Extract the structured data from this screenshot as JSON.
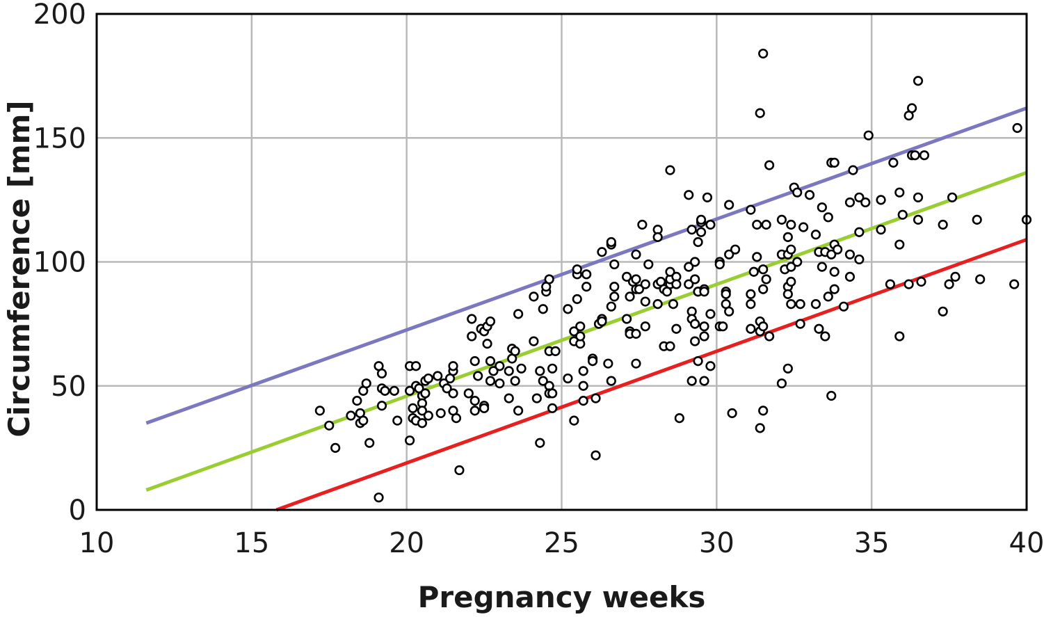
{
  "chart_data": {
    "type": "scatter",
    "title": "",
    "xlabel": "Pregnancy weeks",
    "ylabel": "Circumference [mm]",
    "xlim": [
      10,
      40
    ],
    "ylim": [
      0,
      200
    ],
    "xticks": [
      10,
      15,
      20,
      25,
      30,
      35,
      40
    ],
    "yticks": [
      0,
      50,
      100,
      150,
      200
    ],
    "grid": true,
    "legend": "none",
    "lines": [
      {
        "color": "#7b78c0",
        "x": [
          11.6,
          40
        ],
        "y": [
          35,
          162
        ]
      },
      {
        "color": "#9acd32",
        "x": [
          11.6,
          40
        ],
        "y": [
          8,
          136
        ]
      },
      {
        "color": "#e62020",
        "x": [
          15.8,
          40
        ],
        "y": [
          0,
          109
        ]
      }
    ],
    "series": [
      {
        "marker": "open-circle",
        "points": [
          [
            17.2,
            40
          ],
          [
            17.5,
            34
          ],
          [
            17.7,
            25
          ],
          [
            18.2,
            38
          ],
          [
            18.4,
            44
          ],
          [
            18.5,
            39
          ],
          [
            18.5,
            35
          ],
          [
            18.6,
            36
          ],
          [
            18.6,
            48
          ],
          [
            18.7,
            51
          ],
          [
            18.8,
            27
          ],
          [
            19.1,
            5
          ],
          [
            19.1,
            58
          ],
          [
            19.2,
            55
          ],
          [
            19.2,
            49
          ],
          [
            19.2,
            42
          ],
          [
            19.3,
            48
          ],
          [
            19.6,
            48
          ],
          [
            19.7,
            36
          ],
          [
            20.1,
            58
          ],
          [
            20.1,
            48
          ],
          [
            20.1,
            28
          ],
          [
            20.2,
            41
          ],
          [
            20.2,
            37
          ],
          [
            20.3,
            58
          ],
          [
            20.3,
            50
          ],
          [
            20.3,
            36
          ],
          [
            20.4,
            49
          ],
          [
            20.5,
            46
          ],
          [
            20.5,
            43
          ],
          [
            20.5,
            40
          ],
          [
            20.5,
            35
          ],
          [
            20.6,
            52
          ],
          [
            20.6,
            47
          ],
          [
            20.7,
            38
          ],
          [
            20.7,
            53
          ],
          [
            21.0,
            54
          ],
          [
            21.1,
            39
          ],
          [
            21.2,
            51
          ],
          [
            21.3,
            49
          ],
          [
            21.4,
            53
          ],
          [
            21.5,
            56
          ],
          [
            21.5,
            58
          ],
          [
            21.5,
            47
          ],
          [
            21.5,
            40
          ],
          [
            21.6,
            37
          ],
          [
            21.7,
            16
          ],
          [
            22.0,
            47
          ],
          [
            22.1,
            70
          ],
          [
            22.1,
            77
          ],
          [
            22.2,
            44
          ],
          [
            22.2,
            40
          ],
          [
            22.2,
            60
          ],
          [
            22.3,
            54
          ],
          [
            22.4,
            73
          ],
          [
            22.5,
            72
          ],
          [
            22.5,
            42
          ],
          [
            22.5,
            41
          ],
          [
            22.6,
            67
          ],
          [
            22.6,
            74
          ],
          [
            22.7,
            76
          ],
          [
            22.7,
            60
          ],
          [
            22.7,
            52
          ],
          [
            22.8,
            56
          ],
          [
            23.0,
            58
          ],
          [
            23.0,
            51
          ],
          [
            23.3,
            56
          ],
          [
            23.3,
            45
          ],
          [
            23.4,
            65
          ],
          [
            23.4,
            61
          ],
          [
            23.5,
            64
          ],
          [
            23.5,
            52
          ],
          [
            23.6,
            79
          ],
          [
            23.6,
            40
          ],
          [
            23.7,
            57
          ],
          [
            24.1,
            68
          ],
          [
            24.1,
            86
          ],
          [
            24.2,
            45
          ],
          [
            24.3,
            27
          ],
          [
            24.3,
            56
          ],
          [
            24.4,
            52
          ],
          [
            24.4,
            81
          ],
          [
            24.5,
            88
          ],
          [
            24.5,
            90
          ],
          [
            24.6,
            93
          ],
          [
            24.6,
            64
          ],
          [
            24.6,
            50
          ],
          [
            24.6,
            47
          ],
          [
            24.7,
            57
          ],
          [
            24.7,
            47
          ],
          [
            24.7,
            41
          ],
          [
            24.8,
            64
          ],
          [
            25.2,
            53
          ],
          [
            25.2,
            81
          ],
          [
            25.4,
            68
          ],
          [
            25.4,
            72
          ],
          [
            25.4,
            36
          ],
          [
            25.5,
            95
          ],
          [
            25.5,
            97
          ],
          [
            25.5,
            85
          ],
          [
            25.6,
            74
          ],
          [
            25.6,
            67
          ],
          [
            25.6,
            70
          ],
          [
            25.7,
            44
          ],
          [
            25.7,
            56
          ],
          [
            25.7,
            50
          ],
          [
            25.8,
            90
          ],
          [
            25.8,
            95
          ],
          [
            26.0,
            61
          ],
          [
            26.0,
            60
          ],
          [
            26.1,
            22
          ],
          [
            26.1,
            45
          ],
          [
            26.2,
            75
          ],
          [
            26.3,
            77
          ],
          [
            26.3,
            76
          ],
          [
            26.3,
            104
          ],
          [
            26.5,
            59
          ],
          [
            26.6,
            107
          ],
          [
            26.6,
            108
          ],
          [
            26.6,
            82
          ],
          [
            26.6,
            52
          ],
          [
            26.7,
            99
          ],
          [
            26.7,
            90
          ],
          [
            26.7,
            86
          ],
          [
            27.1,
            77
          ],
          [
            27.1,
            94
          ],
          [
            27.2,
            86
          ],
          [
            27.2,
            72
          ],
          [
            27.2,
            71
          ],
          [
            27.3,
            92
          ],
          [
            27.4,
            93
          ],
          [
            27.4,
            89
          ],
          [
            27.4,
            59
          ],
          [
            27.4,
            71
          ],
          [
            27.4,
            103
          ],
          [
            27.5,
            89
          ],
          [
            27.6,
            115
          ],
          [
            27.7,
            91
          ],
          [
            27.7,
            74
          ],
          [
            27.7,
            84
          ],
          [
            27.8,
            99
          ],
          [
            28.1,
            113
          ],
          [
            28.1,
            110
          ],
          [
            28.1,
            83
          ],
          [
            28.1,
            91
          ],
          [
            28.2,
            92
          ],
          [
            28.3,
            89
          ],
          [
            28.3,
            66
          ],
          [
            28.4,
            88
          ],
          [
            28.5,
            91
          ],
          [
            28.5,
            93
          ],
          [
            28.5,
            96
          ],
          [
            28.5,
            66
          ],
          [
            28.5,
            137
          ],
          [
            28.6,
            83
          ],
          [
            28.7,
            73
          ],
          [
            28.7,
            94
          ],
          [
            28.7,
            91
          ],
          [
            28.8,
            37
          ],
          [
            29.1,
            127
          ],
          [
            29.1,
            98
          ],
          [
            29.1,
            91
          ],
          [
            29.2,
            80
          ],
          [
            29.2,
            52
          ],
          [
            29.2,
            77
          ],
          [
            29.2,
            113
          ],
          [
            29.3,
            100
          ],
          [
            29.3,
            93
          ],
          [
            29.3,
            68
          ],
          [
            29.3,
            75
          ],
          [
            29.4,
            108
          ],
          [
            29.4,
            88
          ],
          [
            29.4,
            88
          ],
          [
            29.4,
            60
          ],
          [
            29.5,
            116
          ],
          [
            29.5,
            117
          ],
          [
            29.5,
            112
          ],
          [
            29.6,
            89
          ],
          [
            29.6,
            70
          ],
          [
            29.6,
            52
          ],
          [
            29.6,
            88
          ],
          [
            29.6,
            74
          ],
          [
            29.7,
            126
          ],
          [
            29.8,
            115
          ],
          [
            29.8,
            79
          ],
          [
            29.8,
            58
          ],
          [
            30.1,
            74
          ],
          [
            30.1,
            100
          ],
          [
            30.1,
            99
          ],
          [
            30.2,
            74
          ],
          [
            30.3,
            88
          ],
          [
            30.3,
            87
          ],
          [
            30.3,
            83
          ],
          [
            30.4,
            80
          ],
          [
            30.4,
            123
          ],
          [
            30.4,
            103
          ],
          [
            30.5,
            39
          ],
          [
            30.6,
            105
          ],
          [
            31.1,
            121
          ],
          [
            31.1,
            87
          ],
          [
            31.1,
            83
          ],
          [
            31.1,
            73
          ],
          [
            31.2,
            96
          ],
          [
            31.3,
            115
          ],
          [
            31.3,
            102
          ],
          [
            31.4,
            160
          ],
          [
            31.4,
            72
          ],
          [
            31.4,
            76
          ],
          [
            31.4,
            33
          ],
          [
            31.5,
            184
          ],
          [
            31.5,
            40
          ],
          [
            31.5,
            97
          ],
          [
            31.5,
            89
          ],
          [
            31.5,
            74
          ],
          [
            31.6,
            115
          ],
          [
            31.6,
            93
          ],
          [
            31.7,
            139
          ],
          [
            31.7,
            70
          ],
          [
            32.1,
            117
          ],
          [
            32.1,
            103
          ],
          [
            32.1,
            51
          ],
          [
            32.2,
            97
          ],
          [
            32.3,
            110
          ],
          [
            32.3,
            103
          ],
          [
            32.3,
            90
          ],
          [
            32.3,
            87
          ],
          [
            32.3,
            57
          ],
          [
            32.4,
            115
          ],
          [
            32.4,
            105
          ],
          [
            32.4,
            98
          ],
          [
            32.4,
            92
          ],
          [
            32.4,
            83
          ],
          [
            32.5,
            130
          ],
          [
            32.6,
            128
          ],
          [
            32.6,
            100
          ],
          [
            32.7,
            83
          ],
          [
            32.7,
            75
          ],
          [
            32.8,
            114
          ],
          [
            33.0,
            127
          ],
          [
            33.2,
            111
          ],
          [
            33.2,
            83
          ],
          [
            33.3,
            104
          ],
          [
            33.3,
            73
          ],
          [
            33.4,
            122
          ],
          [
            33.4,
            98
          ],
          [
            33.5,
            104
          ],
          [
            33.5,
            70
          ],
          [
            33.6,
            118
          ],
          [
            33.6,
            86
          ],
          [
            33.7,
            140
          ],
          [
            33.7,
            103
          ],
          [
            33.7,
            46
          ],
          [
            33.8,
            140
          ],
          [
            33.8,
            107
          ],
          [
            33.8,
            96
          ],
          [
            33.8,
            89
          ],
          [
            33.9,
            105
          ],
          [
            34.1,
            82
          ],
          [
            34.3,
            124
          ],
          [
            34.3,
            103
          ],
          [
            34.3,
            94
          ],
          [
            34.4,
            137
          ],
          [
            34.6,
            126
          ],
          [
            34.6,
            112
          ],
          [
            34.6,
            101
          ],
          [
            34.8,
            124
          ],
          [
            34.9,
            151
          ],
          [
            35.3,
            113
          ],
          [
            35.3,
            125
          ],
          [
            35.6,
            91
          ],
          [
            35.7,
            140
          ],
          [
            35.9,
            128
          ],
          [
            35.9,
            107
          ],
          [
            35.9,
            70
          ],
          [
            36.0,
            119
          ],
          [
            36.2,
            159
          ],
          [
            36.3,
            162
          ],
          [
            36.3,
            143
          ],
          [
            36.2,
            91
          ],
          [
            36.4,
            143
          ],
          [
            36.5,
            173
          ],
          [
            36.5,
            126
          ],
          [
            36.5,
            117
          ],
          [
            36.6,
            92
          ],
          [
            36.7,
            143
          ],
          [
            37.3,
            115
          ],
          [
            37.3,
            80
          ],
          [
            37.5,
            91
          ],
          [
            37.6,
            126
          ],
          [
            37.7,
            94
          ],
          [
            38.4,
            117
          ],
          [
            38.5,
            93
          ],
          [
            39.6,
            91
          ],
          [
            39.7,
            154
          ],
          [
            40.0,
            117
          ]
        ]
      }
    ]
  }
}
